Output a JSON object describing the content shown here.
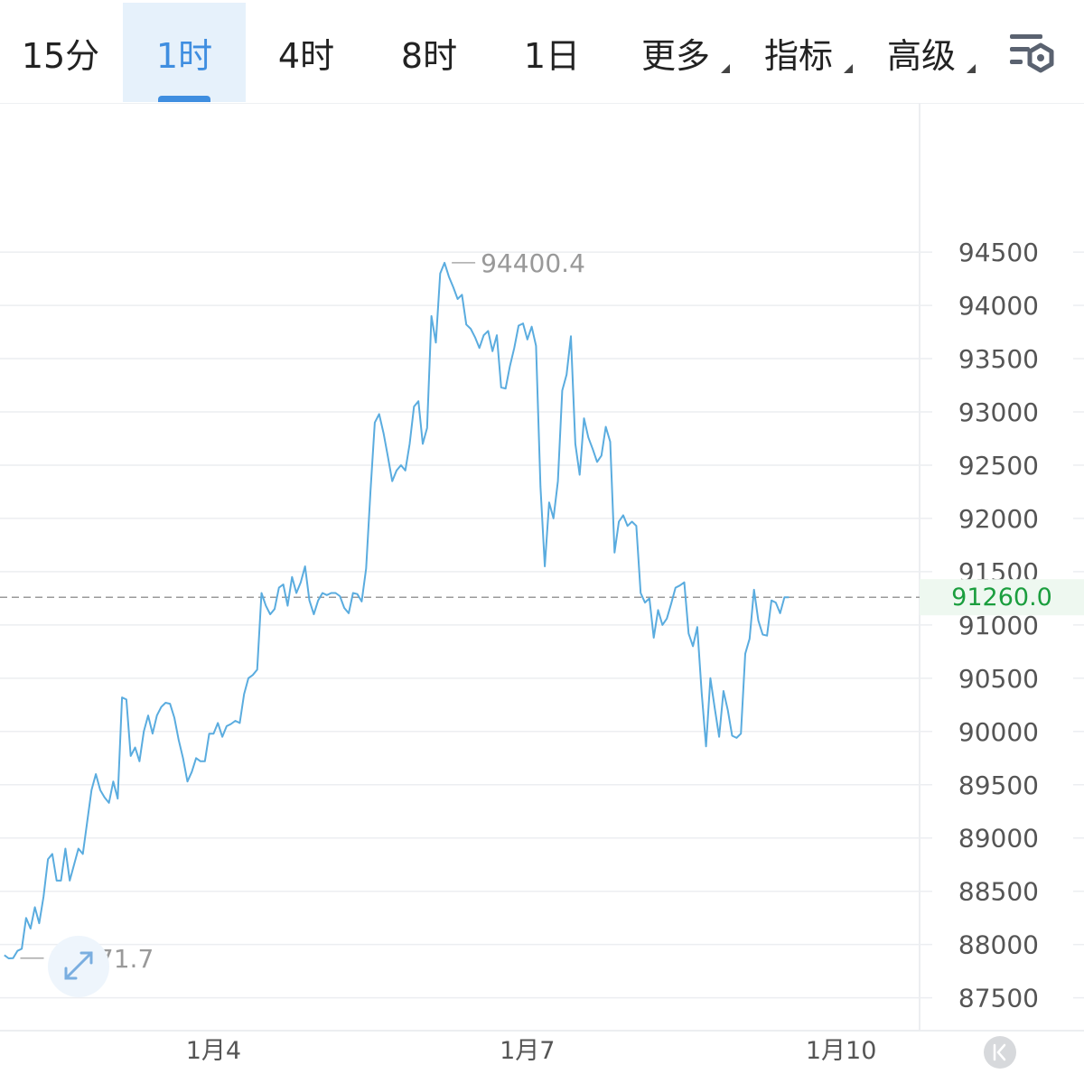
{
  "tabs": [
    {
      "label": "15分",
      "active": false,
      "dropdown": false
    },
    {
      "label": "1时",
      "active": true,
      "dropdown": false
    },
    {
      "label": "4时",
      "active": false,
      "dropdown": false
    },
    {
      "label": "8时",
      "active": false,
      "dropdown": false
    },
    {
      "label": "1日",
      "active": false,
      "dropdown": false
    },
    {
      "label": "更多",
      "active": false,
      "dropdown": true
    },
    {
      "label": "指标",
      "active": false,
      "dropdown": true
    },
    {
      "label": "高级",
      "active": false,
      "dropdown": true
    }
  ],
  "toolbar": {
    "settings_icon": "chart-settings-icon"
  },
  "colors": {
    "accent": "#3f8ee0",
    "active_tab_bg": "#e6f1fb",
    "line": "#5aacdf",
    "current_price": "#1b9e3e",
    "grid": "#eceef1",
    "current_price_line": "#9a9a9a"
  },
  "chart_data": {
    "type": "line",
    "interval": "1时",
    "ylim": [
      87200,
      95900
    ],
    "yticks": [
      94500,
      94000,
      93500,
      93000,
      92500,
      92000,
      91500,
      91000,
      90500,
      90000,
      89500,
      89000,
      88500,
      88000,
      87500
    ],
    "xlabels": [
      {
        "label": "1月4",
        "t": 48
      },
      {
        "label": "1月7",
        "t": 120
      },
      {
        "label": "1月10",
        "t": 192
      }
    ],
    "x_range": [
      -1,
      210
    ],
    "current_price": 91260.0,
    "current_price_label": "91260.0",
    "high": {
      "value": 94400.4,
      "label": "94400.4",
      "t": 101
    },
    "low": {
      "value": 87871.7,
      "label": "87871.7",
      "t": 2
    },
    "grid": true,
    "series": [
      {
        "values": [
          87900,
          87870,
          87872,
          87940,
          87960,
          88250,
          88150,
          88350,
          88200,
          88450,
          88800,
          88850,
          88600,
          88600,
          88900,
          88600,
          88750,
          88900,
          88850,
          89150,
          89450,
          89600,
          89450,
          89380,
          89330,
          89530,
          89370,
          90320,
          90300,
          89770,
          89850,
          89720,
          90000,
          90150,
          89980,
          90150,
          90230,
          90270,
          90260,
          90130,
          89920,
          89750,
          89530,
          89620,
          89750,
          89720,
          89720,
          89980,
          89980,
          90080,
          89950,
          90050,
          90070,
          90100,
          90080,
          90350,
          90500,
          90530,
          90580,
          91300,
          91180,
          91100,
          91150,
          91350,
          91380,
          91180,
          91450,
          91300,
          91400,
          91550,
          91230,
          91100,
          91230,
          91300,
          91280,
          91300,
          91300,
          91270,
          91160,
          91110,
          91300,
          91290,
          91220,
          91530,
          92250,
          92900,
          92980,
          92800,
          92580,
          92350,
          92450,
          92500,
          92450,
          92700,
          93050,
          93100,
          92700,
          92850,
          93900,
          93650,
          94300,
          94400,
          94270,
          94170,
          94060,
          94100,
          93820,
          93780,
          93700,
          93600,
          93720,
          93760,
          93570,
          93720,
          93230,
          93220,
          93430,
          93600,
          93810,
          93830,
          93680,
          93800,
          93620,
          92300,
          91550,
          92150,
          92000,
          92350,
          93200,
          93350,
          93710,
          92700,
          92410,
          92940,
          92760,
          92650,
          92530,
          92590,
          92860,
          92720,
          91680,
          91970,
          92030,
          91930,
          91970,
          91930,
          91300,
          91210,
          91250,
          90880,
          91140,
          91000,
          91060,
          91200,
          91350,
          91370,
          91400,
          90920,
          90800,
          90980,
          90360,
          89860,
          90500,
          90220,
          89950,
          90380,
          90200,
          89960,
          89940,
          89980,
          90730,
          90870,
          91330,
          91040,
          90910,
          90900,
          91230,
          91210,
          91110,
          91260,
          91260
        ]
      }
    ]
  }
}
